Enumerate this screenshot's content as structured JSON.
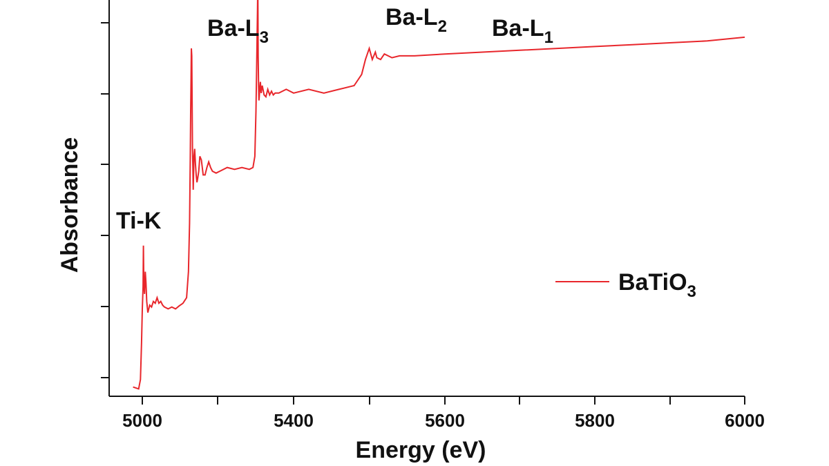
{
  "chart_data": {
    "type": "line",
    "xlabel": "Energy (eV)",
    "ylabel": "Absorbance",
    "xlim": [
      4960,
      6000
    ],
    "ylim": [
      0,
      10.5
    ],
    "x_ticks": [
      5000,
      5400,
      5600,
      5800,
      6000
    ],
    "y_ticks_count": 6,
    "grid": false,
    "legend_position": "middle-right",
    "series": [
      {
        "name_main": "BaTiO",
        "name_sub": "3",
        "color": "#e8262b",
        "x": [
          4965,
          4980,
          4985,
          4988,
          4990,
          4992,
          4993,
          4994,
          4996,
          4998,
          5000,
          5002,
          5005,
          5010,
          5015,
          5020,
          5025,
          5030,
          5035,
          5040,
          5045,
          5050,
          5060,
          5070,
          5080,
          5090,
          5100,
          5110,
          5115,
          5118,
          5120,
          5121,
          5122,
          5123,
          5124,
          5125,
          5126,
          5127,
          5128,
          5130,
          5132,
          5134,
          5136,
          5138,
          5140,
          5143,
          5146,
          5150,
          5155,
          5160,
          5165,
          5170,
          5175,
          5180,
          5190,
          5200,
          5220,
          5240,
          5260,
          5280,
          5290,
          5295,
          5298,
          5300,
          5302,
          5303,
          5304,
          5305,
          5306,
          5307,
          5308,
          5310,
          5312,
          5315,
          5320,
          5325,
          5330,
          5335,
          5340,
          5345,
          5350,
          5360,
          5380,
          5400,
          5420,
          5440,
          5460,
          5480,
          5490,
          5495,
          5500,
          5504,
          5506,
          5508,
          5510,
          5515,
          5520,
          5530,
          5540,
          5560,
          5600,
          5650,
          5700,
          5750,
          5800,
          5850,
          5900,
          5950,
          6000
        ],
        "y": [
          0.1,
          0.05,
          0.3,
          1.3,
          2.2,
          2.8,
          3.9,
          3.0,
          2.6,
          3.2,
          2.9,
          2.4,
          2.1,
          2.3,
          2.25,
          2.4,
          2.35,
          2.5,
          2.35,
          2.4,
          2.3,
          2.25,
          2.2,
          2.25,
          2.2,
          2.28,
          2.35,
          2.5,
          3.2,
          4.5,
          6.2,
          7.5,
          8.3,
          9.2,
          9.0,
          7.8,
          6.5,
          6.0,
          5.4,
          6.3,
          6.5,
          6.1,
          5.8,
          5.6,
          5.7,
          5.9,
          6.3,
          6.2,
          5.8,
          5.8,
          6.0,
          6.15,
          6.0,
          5.9,
          5.85,
          5.9,
          6.0,
          5.95,
          6.0,
          5.95,
          6.0,
          6.3,
          7.5,
          8.8,
          10.2,
          11.0,
          9.0,
          8.2,
          7.8,
          7.9,
          8.1,
          8.3,
          8.0,
          8.2,
          7.95,
          7.9,
          8.1,
          7.95,
          8.05,
          7.95,
          8.0,
          8.0,
          8.1,
          8.0,
          8.1,
          8.0,
          8.1,
          8.2,
          8.5,
          8.9,
          9.2,
          8.9,
          9.0,
          9.1,
          8.95,
          8.9,
          9.05,
          8.95,
          9.0,
          9.0,
          9.05,
          9.1,
          9.15,
          9.2,
          9.25,
          9.3,
          9.35,
          9.4,
          9.5
        ]
      }
    ],
    "annotations": [
      {
        "main": "Ti-K",
        "sub": ""
      },
      {
        "main": "Ba-L",
        "sub": "3"
      },
      {
        "main": "Ba-L",
        "sub": "2"
      },
      {
        "main": "Ba-L",
        "sub": "1"
      }
    ]
  }
}
